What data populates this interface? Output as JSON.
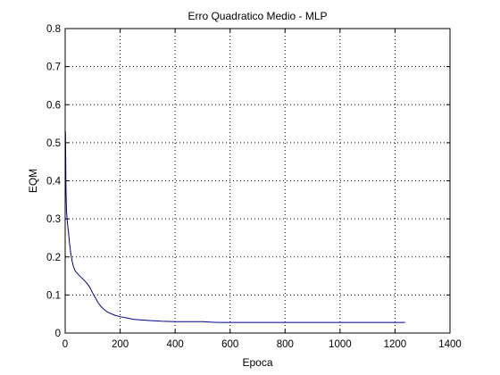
{
  "chart_data": {
    "type": "line",
    "title": "Erro Quadratico Medio - MLP",
    "xlabel": "Epoca",
    "ylabel": "EQM",
    "xlim": [
      0,
      1400
    ],
    "ylim": [
      0,
      0.8
    ],
    "xticks": [
      0,
      200,
      400,
      600,
      800,
      1000,
      1200,
      1400
    ],
    "yticks": [
      0,
      0.1,
      0.2,
      0.3,
      0.4,
      0.5,
      0.6,
      0.7,
      0.8
    ],
    "xtick_labels": [
      "0",
      "200",
      "400",
      "600",
      "800",
      "1000",
      "1200",
      "1400"
    ],
    "ytick_labels": [
      "0",
      "0.1",
      "0.2",
      "0.3",
      "0.4",
      "0.5",
      "0.6",
      "0.7",
      "0.8"
    ],
    "grid": true,
    "grid_style": "dotted",
    "line_color": "#00008B",
    "series": [
      {
        "x": [
          1,
          2,
          3,
          5,
          8,
          12,
          16,
          20,
          25,
          30,
          35,
          40,
          50,
          60,
          70,
          80,
          90,
          100,
          110,
          120,
          130,
          140,
          150,
          160,
          170,
          180,
          200,
          220,
          250,
          300,
          350,
          400,
          450,
          500,
          520,
          550,
          600,
          700,
          800,
          900,
          1000,
          1100,
          1200,
          1237
        ],
        "y": [
          0.53,
          0.46,
          0.38,
          0.32,
          0.29,
          0.265,
          0.235,
          0.21,
          0.19,
          0.175,
          0.165,
          0.16,
          0.152,
          0.145,
          0.138,
          0.13,
          0.12,
          0.105,
          0.092,
          0.08,
          0.07,
          0.063,
          0.057,
          0.053,
          0.05,
          0.047,
          0.043,
          0.04,
          0.036,
          0.033,
          0.031,
          0.03,
          0.03,
          0.03,
          0.029,
          0.028,
          0.028,
          0.028,
          0.028,
          0.028,
          0.028,
          0.028,
          0.028,
          0.028
        ]
      }
    ]
  }
}
